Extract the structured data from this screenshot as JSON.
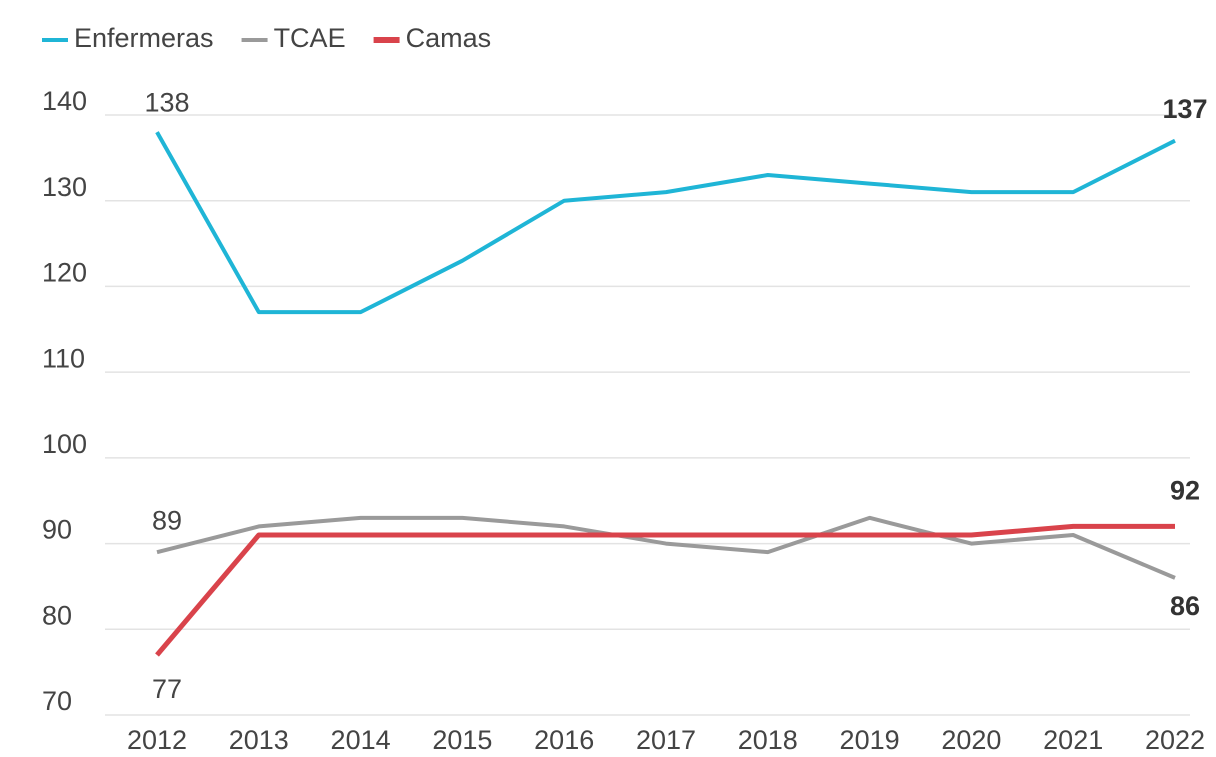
{
  "chart_data": {
    "type": "line",
    "categories": [
      "2012",
      "2013",
      "2014",
      "2015",
      "2016",
      "2017",
      "2018",
      "2019",
      "2020",
      "2021",
      "2022"
    ],
    "series": [
      {
        "name": "Enfermeras",
        "color": "#1fb5d6",
        "values": [
          138,
          117,
          117,
          123,
          130,
          131,
          133,
          132,
          131,
          131,
          137
        ]
      },
      {
        "name": "TCAE",
        "color": "#9a9a9a",
        "values": [
          89,
          92,
          93,
          93,
          92,
          90,
          89,
          93,
          90,
          91,
          86
        ]
      },
      {
        "name": "Camas",
        "color": "#d9434b",
        "values": [
          77,
          91,
          91,
          91,
          91,
          91,
          91,
          91,
          91,
          92,
          92
        ]
      }
    ],
    "ylim": [
      70,
      140
    ],
    "yticks": [
      70,
      80,
      90,
      100,
      110,
      120,
      130,
      140
    ],
    "grid": true,
    "legend": "top-left"
  }
}
